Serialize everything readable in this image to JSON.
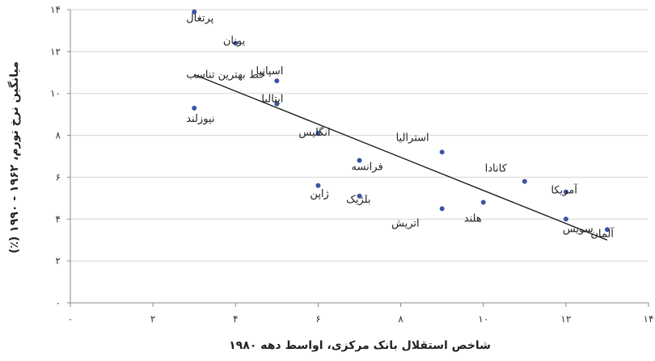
{
  "chart_data": {
    "type": "scatter",
    "xlabel": "شاخص استقلال بانک مرکزی، اواسط دهه ۱۹۸۰",
    "ylabel": "میانگین نرخ تورم، ۱۹۶۲ - ۱۹۹۰ (٪)",
    "xlim": [
      0,
      14
    ],
    "ylim": [
      0,
      14
    ],
    "x_ticks": [
      0,
      2,
      4,
      6,
      8,
      10,
      12,
      14
    ],
    "y_ticks": [
      0,
      2,
      4,
      6,
      8,
      10,
      12,
      14
    ],
    "x_tick_labels": [
      "۰",
      "۲",
      "۴",
      "۶",
      "۸",
      "۱۰",
      "۱۲",
      "۱۴"
    ],
    "y_tick_labels": [
      "۰",
      "۲",
      "۴",
      "۶",
      "۸",
      "۱۰",
      "۱۲",
      "۱۴"
    ],
    "grid": "horizontal",
    "points": [
      {
        "label": "پرتغال",
        "x": 3,
        "y": 13.9
      },
      {
        "label": "یونان",
        "x": 4,
        "y": 12.4
      },
      {
        "label": "اسپانیا",
        "x": 5,
        "y": 10.6
      },
      {
        "label": "ایتالیا",
        "x": 5,
        "y": 9.5
      },
      {
        "label": "نیوزلند",
        "x": 3,
        "y": 9.3
      },
      {
        "label": "انگلیس",
        "x": 6,
        "y": 8.1
      },
      {
        "label": "فرانسه",
        "x": 7,
        "y": 6.8
      },
      {
        "label": "ژاپن",
        "x": 6,
        "y": 5.6
      },
      {
        "label": "بلژیک",
        "x": 7,
        "y": 5.1
      },
      {
        "label": "استرالیا",
        "x": 9,
        "y": 7.2
      },
      {
        "label": "اتریش",
        "x": 9,
        "y": 4.5
      },
      {
        "label": "هلند",
        "x": 10,
        "y": 4.8
      },
      {
        "label": "کانادا",
        "x": 11,
        "y": 5.8
      },
      {
        "label": "آمریکا",
        "x": 12,
        "y": 5.3
      },
      {
        "label": "سویس",
        "x": 12,
        "y": 4.0
      },
      {
        "label": "آلمان",
        "x": 13,
        "y": 3.5
      }
    ],
    "fit_line": {
      "label": "خط بهترین تناسب",
      "x": [
        3,
        13
      ],
      "y": [
        10.9,
        3.0
      ]
    }
  }
}
